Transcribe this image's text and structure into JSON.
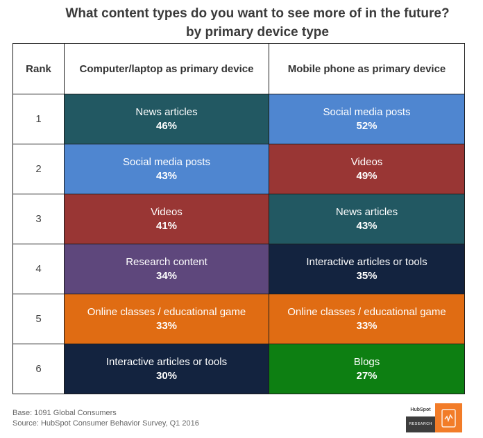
{
  "chart_data": {
    "type": "table",
    "title": "What content types do you want to see more of in the future?",
    "subtitle": "by primary device type",
    "columns": [
      "Rank",
      "Computer/laptop as primary device",
      "Mobile phone as primary device"
    ],
    "rows": [
      {
        "rank": "1",
        "computer": {
          "label": "News articles",
          "pct": "46%",
          "value": 46,
          "color": "#225862"
        },
        "mobile": {
          "label": "Social media posts",
          "pct": "52%",
          "value": 52,
          "color": "#4f86d0"
        }
      },
      {
        "rank": "2",
        "computer": {
          "label": "Social media posts",
          "pct": "43%",
          "value": 43,
          "color": "#4f86d0"
        },
        "mobile": {
          "label": "Videos",
          "pct": "49%",
          "value": 49,
          "color": "#993634"
        }
      },
      {
        "rank": "3",
        "computer": {
          "label": "Videos",
          "pct": "41%",
          "value": 41,
          "color": "#993634"
        },
        "mobile": {
          "label": "News articles",
          "pct": "43%",
          "value": 43,
          "color": "#225862"
        }
      },
      {
        "rank": "4",
        "computer": {
          "label": "Research content",
          "pct": "34%",
          "value": 34,
          "color": "#5e477c"
        },
        "mobile": {
          "label": "Interactive articles or tools",
          "pct": "35%",
          "value": 35,
          "color": "#13233f"
        }
      },
      {
        "rank": "5",
        "computer": {
          "label": "Online classes / educational game",
          "pct": "33%",
          "value": 33,
          "color": "#e06c13"
        },
        "mobile": {
          "label": "Online classes / educational game",
          "pct": "33%",
          "value": 33,
          "color": "#e06c13"
        }
      },
      {
        "rank": "6",
        "computer": {
          "label": "Interactive articles or tools",
          "pct": "30%",
          "value": 30,
          "color": "#13233f"
        },
        "mobile": {
          "label": "Blogs",
          "pct": "27%",
          "value": 27,
          "color": "#0d7f12"
        }
      }
    ]
  },
  "footer": {
    "base": "Base: 1091 Global Consumers",
    "source": "Source: HubSpot Consumer Behavior Survey, Q1 2016"
  },
  "logo": {
    "brand": "HubSpot",
    "label": "RESEARCH",
    "icon": "tablet-chart-icon"
  }
}
